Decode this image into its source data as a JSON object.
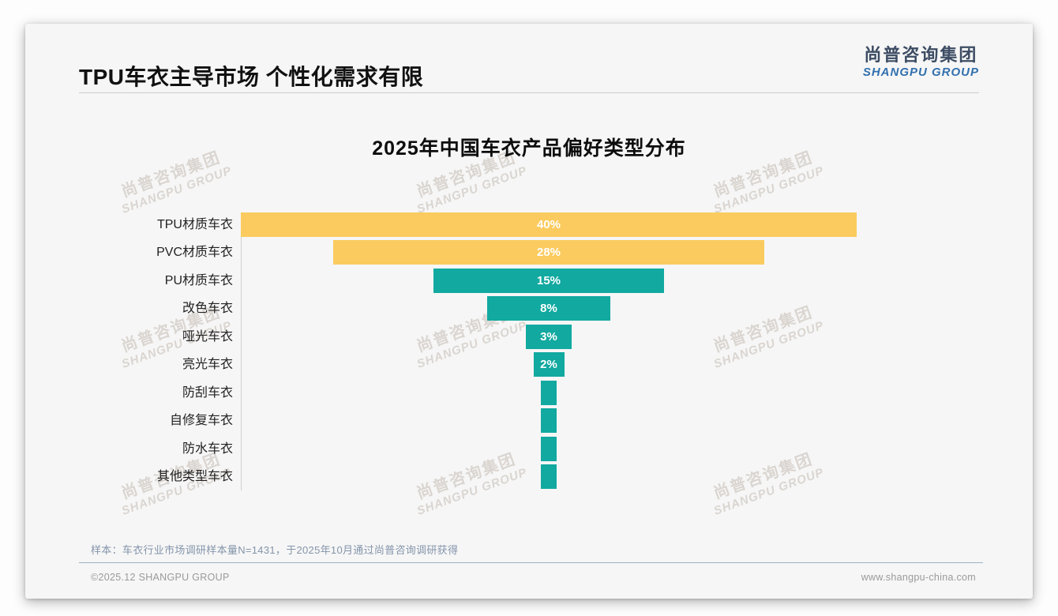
{
  "page": {
    "header": {
      "title": "TPU车衣主导市场 个性化需求有限",
      "logo_cn": "尚普咨询集团",
      "logo_en": "SHANGPU GROUP"
    },
    "watermark": {
      "line1": "尚普咨询集团",
      "line2": "SHANGPU GROUP"
    },
    "footer": {
      "note": "样本：车衣行业市场调研样本量N=1431，于2025年10月通过尚普咨询调研获得",
      "copyright": "©2025.12 SHANGPU GROUP",
      "website": "www.shangpu-china.com"
    },
    "colors": {
      "yellow": "#fbcb5f",
      "teal": "#11a9a0",
      "logo_cn": "#3c4c63",
      "logo_en": "#3270ae",
      "note_text": "#8495ab",
      "footer_text": "#9a9a9a",
      "card_bg": "#f6f6f6"
    }
  },
  "chart_data": {
    "type": "bar",
    "orientation": "horizontal",
    "layout_style": "centered-funnel",
    "title": "2025年中国车衣产品偏好类型分布",
    "categories": [
      "TPU材质车衣",
      "PVC材质车衣",
      "PU材质车衣",
      "改色车衣",
      "哑光车衣",
      "亮光车衣",
      "防刮车衣",
      "自修复车衣",
      "防水车衣",
      "其他类型车衣"
    ],
    "values": [
      40,
      28,
      15,
      8,
      3,
      2,
      1,
      1,
      1,
      1
    ],
    "value_labels": [
      "40%",
      "28%",
      "15%",
      "8%",
      "3%",
      "2%",
      "",
      "",
      "",
      ""
    ],
    "bar_colors": [
      "yellow",
      "yellow",
      "teal",
      "teal",
      "teal",
      "teal",
      "teal",
      "teal",
      "teal",
      "teal"
    ],
    "unit": "%",
    "xlim": [
      0,
      40
    ],
    "legend": false,
    "gridlines": false,
    "xlabel": "",
    "ylabel": ""
  }
}
